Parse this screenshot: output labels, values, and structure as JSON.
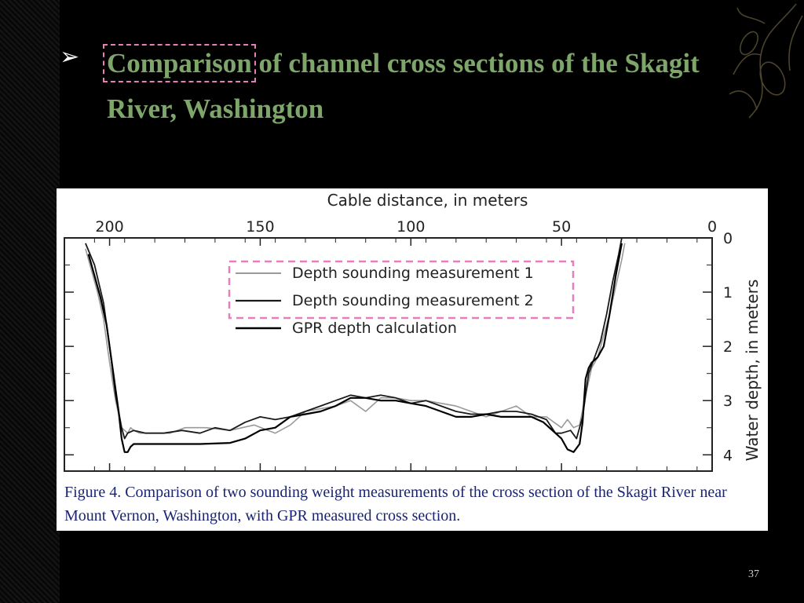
{
  "slide": {
    "bullet": "➢",
    "title_highlight": "Comparison",
    "title_rest": " of channel cross sections of the Skagit River, Washington",
    "caption": "Figure 4. Comparison of two sounding weight measurements of the cross section of the Skagit River near Mount Vernon, Washington, with GPR measured cross section.",
    "page_number": "37"
  },
  "colors": {
    "background": "#000000",
    "title": "#7fa66a",
    "highlight_box": "#e87dbb",
    "caption_text": "#1a2470"
  },
  "chart_data": {
    "type": "line",
    "title": "",
    "xlabel": "Cable distance, in meters",
    "ylabel": "Water depth, in meters",
    "x_reversed": true,
    "xlim": [
      0,
      215
    ],
    "ylim": [
      0,
      4.3
    ],
    "x_ticks": [
      200,
      150,
      100,
      50,
      0
    ],
    "y_ticks": [
      0,
      1,
      2,
      3,
      4
    ],
    "grid": false,
    "legend_position": "top-center",
    "series": [
      {
        "name": "Depth sounding measurement 1",
        "color": "#9a9a9a",
        "style": "solid",
        "width": 1.6,
        "x": [
          208,
          206,
          204,
          202,
          200,
          198,
          196,
          194,
          193,
          192,
          190,
          186,
          180,
          175,
          168,
          160,
          152,
          145,
          140,
          135,
          130,
          125,
          120,
          115,
          110,
          105,
          100,
          95,
          90,
          85,
          80,
          75,
          70,
          65,
          60,
          55,
          50,
          48,
          46,
          44,
          42,
          40,
          38,
          36,
          34,
          32,
          30,
          29
        ],
        "y": [
          0.2,
          0.6,
          1.0,
          1.5,
          2.3,
          3.0,
          3.5,
          3.6,
          3.5,
          3.55,
          3.6,
          3.6,
          3.6,
          3.5,
          3.5,
          3.55,
          3.45,
          3.6,
          3.45,
          3.2,
          3.15,
          3.1,
          3.0,
          3.2,
          2.95,
          2.95,
          3.0,
          3.0,
          3.05,
          3.1,
          3.2,
          3.3,
          3.2,
          3.1,
          3.3,
          3.3,
          3.5,
          3.35,
          3.5,
          3.45,
          2.9,
          2.4,
          2.2,
          1.8,
          1.4,
          0.9,
          0.4,
          0.1
        ]
      },
      {
        "name": "Depth sounding measurement 2",
        "color": "#1a1a1a",
        "style": "solid",
        "width": 1.8,
        "x": [
          208,
          205,
          202,
          200,
          198,
          196,
          195,
          194,
          192,
          188,
          182,
          176,
          170,
          165,
          160,
          155,
          150,
          145,
          140,
          135,
          130,
          125,
          120,
          115,
          110,
          105,
          100,
          95,
          90,
          85,
          80,
          75,
          70,
          65,
          60,
          55,
          52,
          50,
          47,
          45,
          43,
          41,
          39,
          37,
          35,
          33,
          31,
          30
        ],
        "y": [
          0.1,
          0.5,
          1.2,
          2.0,
          2.9,
          3.5,
          3.7,
          3.6,
          3.55,
          3.6,
          3.6,
          3.55,
          3.6,
          3.5,
          3.55,
          3.4,
          3.3,
          3.35,
          3.3,
          3.2,
          3.1,
          3.0,
          2.9,
          2.95,
          2.9,
          2.95,
          3.05,
          3.0,
          3.1,
          3.2,
          3.25,
          3.25,
          3.2,
          3.2,
          3.25,
          3.35,
          3.6,
          3.6,
          3.55,
          3.7,
          3.3,
          2.5,
          2.2,
          1.9,
          1.4,
          0.8,
          0.3,
          0.0
        ]
      },
      {
        "name": "GPR depth calculation",
        "color": "#000000",
        "style": "solid",
        "width": 2.2,
        "x": [
          207,
          205,
          203,
          201,
          199,
          197,
          196,
          195,
          194,
          193,
          192,
          190,
          186,
          180,
          170,
          160,
          155,
          150,
          145,
          140,
          135,
          130,
          125,
          120,
          115,
          110,
          105,
          100,
          95,
          90,
          85,
          80,
          75,
          70,
          65,
          60,
          56,
          53,
          50,
          48,
          46,
          44,
          43,
          42,
          41,
          40,
          38,
          36,
          34,
          32,
          30
        ],
        "y": [
          0.3,
          0.7,
          1.1,
          1.6,
          2.4,
          3.2,
          3.7,
          3.95,
          3.95,
          3.85,
          3.8,
          3.8,
          3.8,
          3.8,
          3.8,
          3.78,
          3.7,
          3.55,
          3.5,
          3.3,
          3.25,
          3.2,
          3.1,
          2.95,
          2.95,
          3.0,
          3.0,
          3.05,
          3.1,
          3.2,
          3.3,
          3.3,
          3.25,
          3.3,
          3.3,
          3.3,
          3.4,
          3.55,
          3.7,
          3.9,
          3.95,
          3.8,
          3.4,
          2.6,
          2.4,
          2.3,
          2.2,
          2.0,
          1.4,
          0.7,
          0.1
        ]
      }
    ]
  }
}
